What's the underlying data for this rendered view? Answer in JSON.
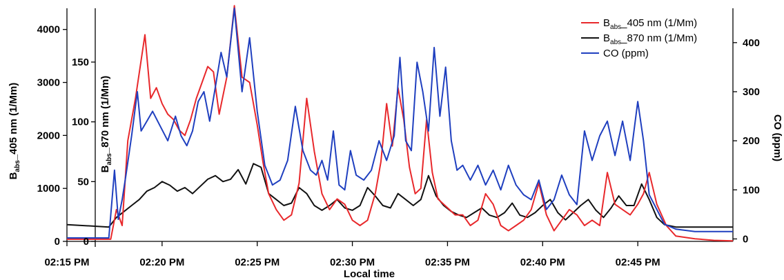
{
  "chart_data": {
    "type": "line",
    "xlabel": "Local time",
    "x_ticks": [
      "02:15 PM",
      "02:20 PM",
      "02:25 PM",
      "02:30 PM",
      "02:35 PM",
      "02:40 PM",
      "02:45 PM"
    ],
    "x_tick_minutes": [
      0,
      5,
      10,
      15,
      20,
      25,
      30
    ],
    "xlim": [
      0,
      35
    ],
    "axes": {
      "left1": {
        "label_main": "B",
        "label_sub": "abs",
        "label_rest": "_405  nm (1/Mm)",
        "ylim": [
          0,
          4400
        ],
        "ticks": [
          0,
          1000,
          2000,
          3000,
          4000
        ]
      },
      "left2": {
        "label_main": "B",
        "label_sub": "abs",
        "label_rest": "_870  nm (1/Mm)",
        "ylim": [
          0,
          195
        ],
        "ticks": [
          0,
          50,
          100,
          150
        ]
      },
      "right": {
        "label": "CO (ppm)",
        "ylim": [
          -5,
          470
        ],
        "ticks": [
          0,
          100,
          200,
          300,
          400
        ]
      }
    },
    "legend_position": "top-right",
    "series": [
      {
        "name_main": "B",
        "name_sub": "abs",
        "name_rest": "_405  nm (1/Mm)",
        "axis": "left1",
        "color": "#e8282b",
        "x": [
          0,
          2.3,
          2.6,
          2.9,
          3.2,
          3.6,
          4.1,
          4.4,
          4.7,
          5.0,
          5.3,
          5.6,
          5.9,
          6.2,
          6.5,
          6.8,
          7.1,
          7.4,
          7.7,
          8.0,
          8.4,
          8.8,
          9.2,
          9.6,
          10.0,
          10.3,
          10.6,
          11.0,
          11.4,
          11.8,
          12.2,
          12.6,
          13.0,
          13.4,
          13.8,
          14.2,
          14.6,
          15.0,
          15.4,
          15.8,
          16.2,
          16.5,
          16.8,
          17.1,
          17.4,
          17.7,
          18.0,
          18.3,
          18.6,
          18.9,
          19.2,
          19.5,
          19.8,
          20.1,
          20.4,
          20.8,
          21.2,
          21.6,
          22.0,
          22.4,
          22.8,
          23.2,
          23.6,
          24.0,
          24.4,
          24.8,
          25.2,
          25.6,
          26.0,
          26.4,
          26.8,
          27.2,
          27.6,
          28.0,
          28.4,
          28.8,
          29.2,
          29.6,
          30.0,
          30.3,
          30.6,
          31.0,
          31.5,
          32.0,
          33.0,
          34.0,
          35.0
        ],
        "y": [
          40,
          40,
          600,
          300,
          1900,
          2700,
          3900,
          2700,
          2900,
          2600,
          2400,
          2300,
          2100,
          2000,
          2300,
          2700,
          3000,
          3300,
          3200,
          2400,
          3100,
          4450,
          3100,
          3000,
          2200,
          1500,
          900,
          600,
          400,
          500,
          1100,
          2700,
          1700,
          900,
          600,
          800,
          700,
          400,
          300,
          400,
          900,
          1500,
          2600,
          1800,
          2900,
          2300,
          1400,
          900,
          1000,
          2300,
          1300,
          800,
          700,
          600,
          500,
          500,
          300,
          400,
          900,
          700,
          300,
          200,
          300,
          400,
          600,
          1100,
          500,
          200,
          400,
          600,
          500,
          300,
          400,
          300,
          1300,
          700,
          600,
          500,
          700,
          900,
          1300,
          700,
          300,
          100,
          50,
          20,
          10
        ]
      },
      {
        "name_main": "B",
        "name_sub": "abs",
        "name_rest": "_870  nm (1/Mm)",
        "axis": "left2",
        "color": "#111111",
        "x": [
          0,
          2.2,
          2.6,
          3.0,
          3.4,
          3.8,
          4.2,
          4.6,
          5.0,
          5.4,
          5.8,
          6.2,
          6.6,
          7.0,
          7.4,
          7.8,
          8.2,
          8.6,
          9.0,
          9.4,
          9.8,
          10.2,
          10.6,
          11.0,
          11.4,
          11.8,
          12.2,
          12.6,
          13.0,
          13.4,
          13.8,
          14.2,
          14.6,
          15.0,
          15.4,
          15.8,
          16.2,
          16.6,
          17.0,
          17.4,
          17.8,
          18.2,
          18.6,
          19.0,
          19.4,
          19.8,
          20.2,
          20.6,
          21.0,
          21.4,
          21.8,
          22.2,
          22.6,
          23.0,
          23.4,
          23.8,
          24.2,
          24.6,
          25.0,
          25.4,
          25.8,
          26.2,
          26.6,
          27.0,
          27.4,
          27.8,
          28.2,
          28.6,
          29.0,
          29.4,
          29.8,
          30.2,
          30.6,
          31.0,
          31.4,
          32.0,
          33.0,
          34.0,
          35.0
        ],
        "y": [
          14,
          12,
          20,
          25,
          30,
          35,
          42,
          45,
          50,
          47,
          42,
          45,
          40,
          46,
          52,
          55,
          50,
          52,
          60,
          48,
          65,
          62,
          40,
          35,
          30,
          32,
          45,
          40,
          30,
          26,
          30,
          35,
          28,
          26,
          30,
          45,
          38,
          30,
          28,
          40,
          35,
          30,
          35,
          55,
          38,
          30,
          25,
          22,
          20,
          24,
          28,
          22,
          20,
          24,
          32,
          22,
          20,
          24,
          30,
          35,
          24,
          18,
          24,
          30,
          35,
          26,
          20,
          28,
          38,
          30,
          30,
          48,
          35,
          20,
          14,
          12,
          12,
          12,
          12
        ]
      },
      {
        "name": "CO (ppm)",
        "axis": "right",
        "color": "#1f3fbf",
        "x": [
          0,
          2.2,
          2.5,
          2.7,
          2.9,
          3.1,
          3.4,
          3.7,
          3.9,
          4.2,
          4.5,
          4.9,
          5.3,
          5.7,
          6.0,
          6.3,
          6.6,
          6.9,
          7.2,
          7.5,
          7.8,
          8.1,
          8.4,
          8.8,
          9.2,
          9.6,
          10.0,
          10.4,
          10.8,
          11.2,
          11.6,
          12.0,
          12.4,
          12.8,
          13.1,
          13.4,
          13.7,
          14.0,
          14.3,
          14.6,
          14.9,
          15.2,
          15.6,
          16.0,
          16.4,
          16.8,
          17.2,
          17.5,
          17.8,
          18.1,
          18.4,
          18.7,
          19.0,
          19.3,
          19.6,
          19.9,
          20.2,
          20.5,
          20.8,
          21.2,
          21.6,
          22.0,
          22.4,
          22.8,
          23.2,
          23.6,
          24.0,
          24.4,
          24.8,
          25.2,
          25.6,
          26.0,
          26.4,
          26.8,
          27.2,
          27.6,
          28.0,
          28.4,
          28.8,
          29.2,
          29.6,
          30.0,
          30.3,
          30.6,
          31.0,
          31.4,
          32.0,
          33.0,
          34.0,
          35.0
        ],
        "y": [
          2,
          2,
          140,
          40,
          80,
          130,
          210,
          300,
          220,
          240,
          260,
          230,
          200,
          250,
          210,
          190,
          220,
          280,
          300,
          240,
          310,
          380,
          330,
          470,
          300,
          410,
          260,
          150,
          110,
          120,
          160,
          270,
          180,
          140,
          130,
          160,
          120,
          220,
          110,
          100,
          180,
          130,
          120,
          140,
          200,
          160,
          210,
          370,
          200,
          180,
          360,
          300,
          220,
          390,
          250,
          350,
          200,
          140,
          150,
          120,
          150,
          110,
          140,
          100,
          150,
          110,
          90,
          80,
          120,
          60,
          80,
          130,
          90,
          70,
          220,
          160,
          210,
          240,
          170,
          240,
          160,
          280,
          200,
          90,
          60,
          30,
          20,
          15,
          15,
          15
        ]
      }
    ]
  }
}
